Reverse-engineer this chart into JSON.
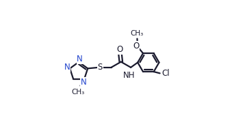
{
  "bg_color": "#ffffff",
  "line_color": "#1a1a2e",
  "n_color": "#2244cc",
  "bond_lw": 1.6,
  "font_size": 8.5,
  "fig_width": 3.58,
  "fig_height": 1.92,
  "dpi": 100,
  "xlim": [
    0.0,
    1.0
  ],
  "ylim": [
    0.0,
    1.0
  ]
}
